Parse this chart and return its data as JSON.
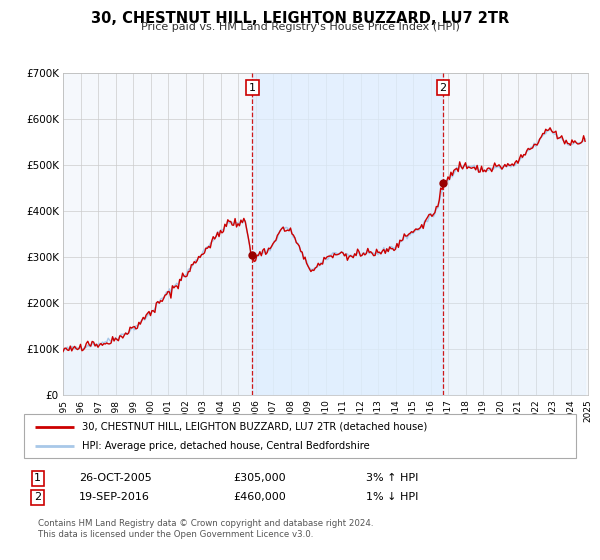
{
  "title": "30, CHESTNUT HILL, LEIGHTON BUZZARD, LU7 2TR",
  "subtitle": "Price paid vs. HM Land Registry's House Price Index (HPI)",
  "legend_line1": "30, CHESTNUT HILL, LEIGHTON BUZZARD, LU7 2TR (detached house)",
  "legend_line2": "HPI: Average price, detached house, Central Bedfordshire",
  "sale1_date": "26-OCT-2005",
  "sale1_price": "£305,000",
  "sale1_hpi": "3% ↑ HPI",
  "sale1_year": 2005.82,
  "sale1_value": 305000,
  "sale2_date": "19-SEP-2016",
  "sale2_price": "£460,000",
  "sale2_hpi": "1% ↓ HPI",
  "sale2_year": 2016.72,
  "sale2_value": 460000,
  "footer_line1": "Contains HM Land Registry data © Crown copyright and database right 2024.",
  "footer_line2": "This data is licensed under the Open Government Licence v3.0.",
  "hpi_color": "#a8c8e8",
  "hpi_fill_color": "#ddeeff",
  "price_color": "#cc0000",
  "marker_color": "#990000",
  "vline_color": "#cc0000",
  "grid_color": "#cccccc",
  "plot_bg_color": "#f5f8fc",
  "shade_color": "#ddeeff",
  "ylim": [
    0,
    700000
  ],
  "xlim_start": 1995,
  "xlim_end": 2025,
  "yticks": [
    0,
    100000,
    200000,
    300000,
    400000,
    500000,
    600000,
    700000
  ],
  "ytick_labels": [
    "£0",
    "£100K",
    "£200K",
    "£300K",
    "£400K",
    "£500K",
    "£600K",
    "£700K"
  ],
  "xticks": [
    1995,
    1996,
    1997,
    1998,
    1999,
    2000,
    2001,
    2002,
    2003,
    2004,
    2005,
    2006,
    2007,
    2008,
    2009,
    2010,
    2011,
    2012,
    2013,
    2014,
    2015,
    2016,
    2017,
    2018,
    2019,
    2020,
    2021,
    2022,
    2023,
    2024,
    2025
  ]
}
